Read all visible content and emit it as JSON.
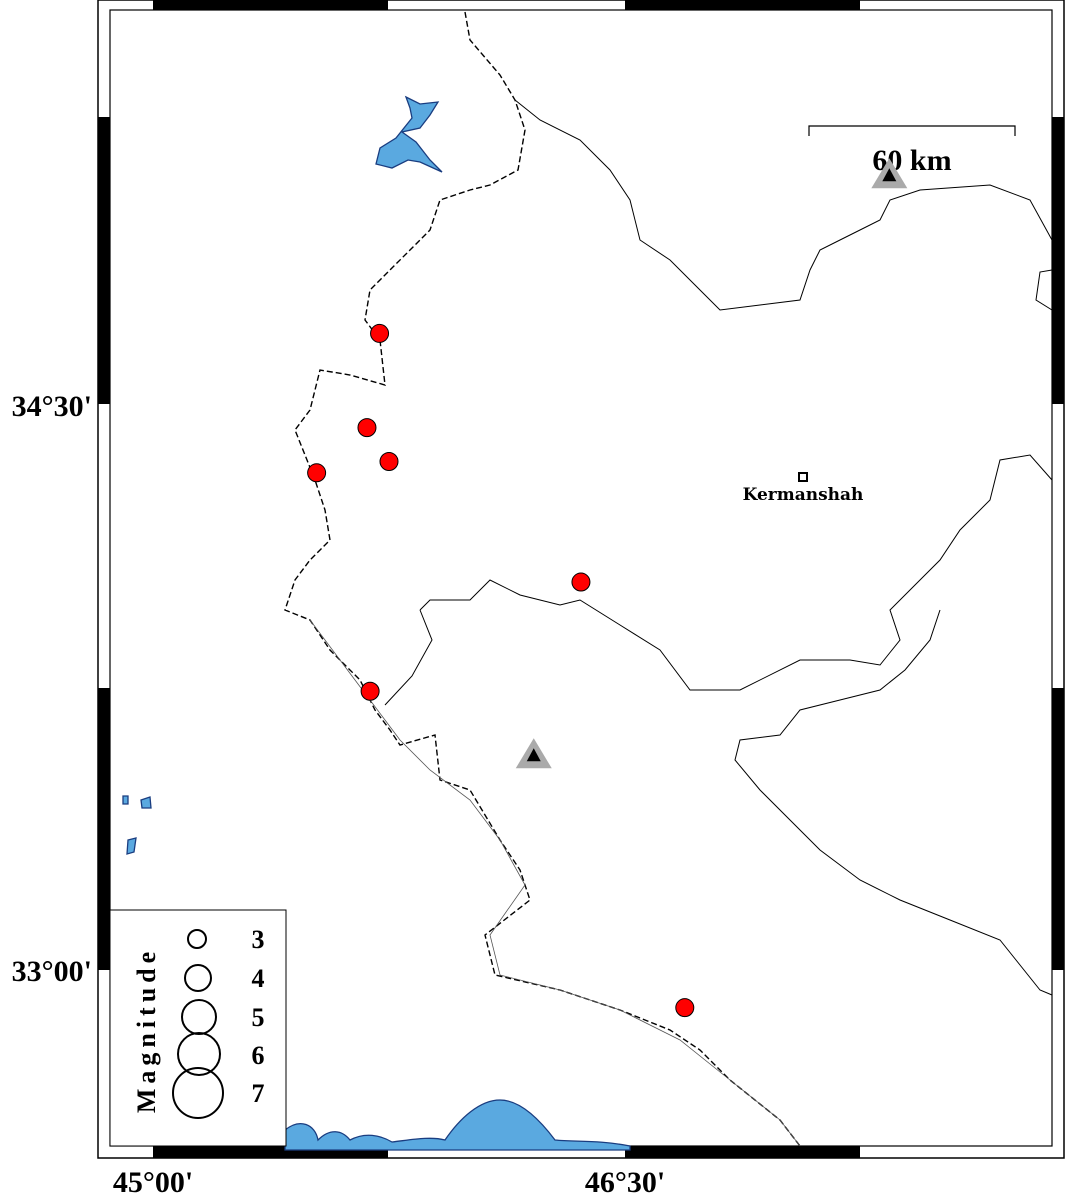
{
  "map": {
    "lon_ticks": [
      {
        "value": 45.0,
        "label": "45°00'"
      },
      {
        "value": 46.5,
        "label": "46°30'"
      }
    ],
    "lat_ticks": [
      {
        "value": 34.5,
        "label": "34°30'"
      },
      {
        "value": 33.0,
        "label": "33°00'"
      }
    ],
    "scale_bar_label": "60 km",
    "city": {
      "name": "Kermanshah",
      "lon": 47.07,
      "lat": 34.31
    },
    "events": [
      {
        "lon": 45.72,
        "lat": 34.69
      },
      {
        "lon": 45.68,
        "lat": 34.44
      },
      {
        "lon": 45.75,
        "lat": 34.35
      },
      {
        "lon": 45.52,
        "lat": 34.32
      },
      {
        "lon": 46.36,
        "lat": 34.03
      },
      {
        "lon": 45.69,
        "lat": 33.74
      },
      {
        "lon": 46.69,
        "lat": 32.9
      }
    ],
    "stations": [
      {
        "lon": 47.34,
        "lat": 35.11
      },
      {
        "lon": 46.21,
        "lat": 33.57
      }
    ],
    "colors": {
      "event": "#ff0000",
      "water": "#5aa9e0",
      "station_outer": "#aaaaaa",
      "station_inner": "#000000"
    },
    "event_icon": "red-circle",
    "station_icon": "triangle"
  },
  "legend": {
    "title": "Magnitude",
    "magnitudes": [
      "3",
      "4",
      "5",
      "6",
      "7"
    ]
  }
}
